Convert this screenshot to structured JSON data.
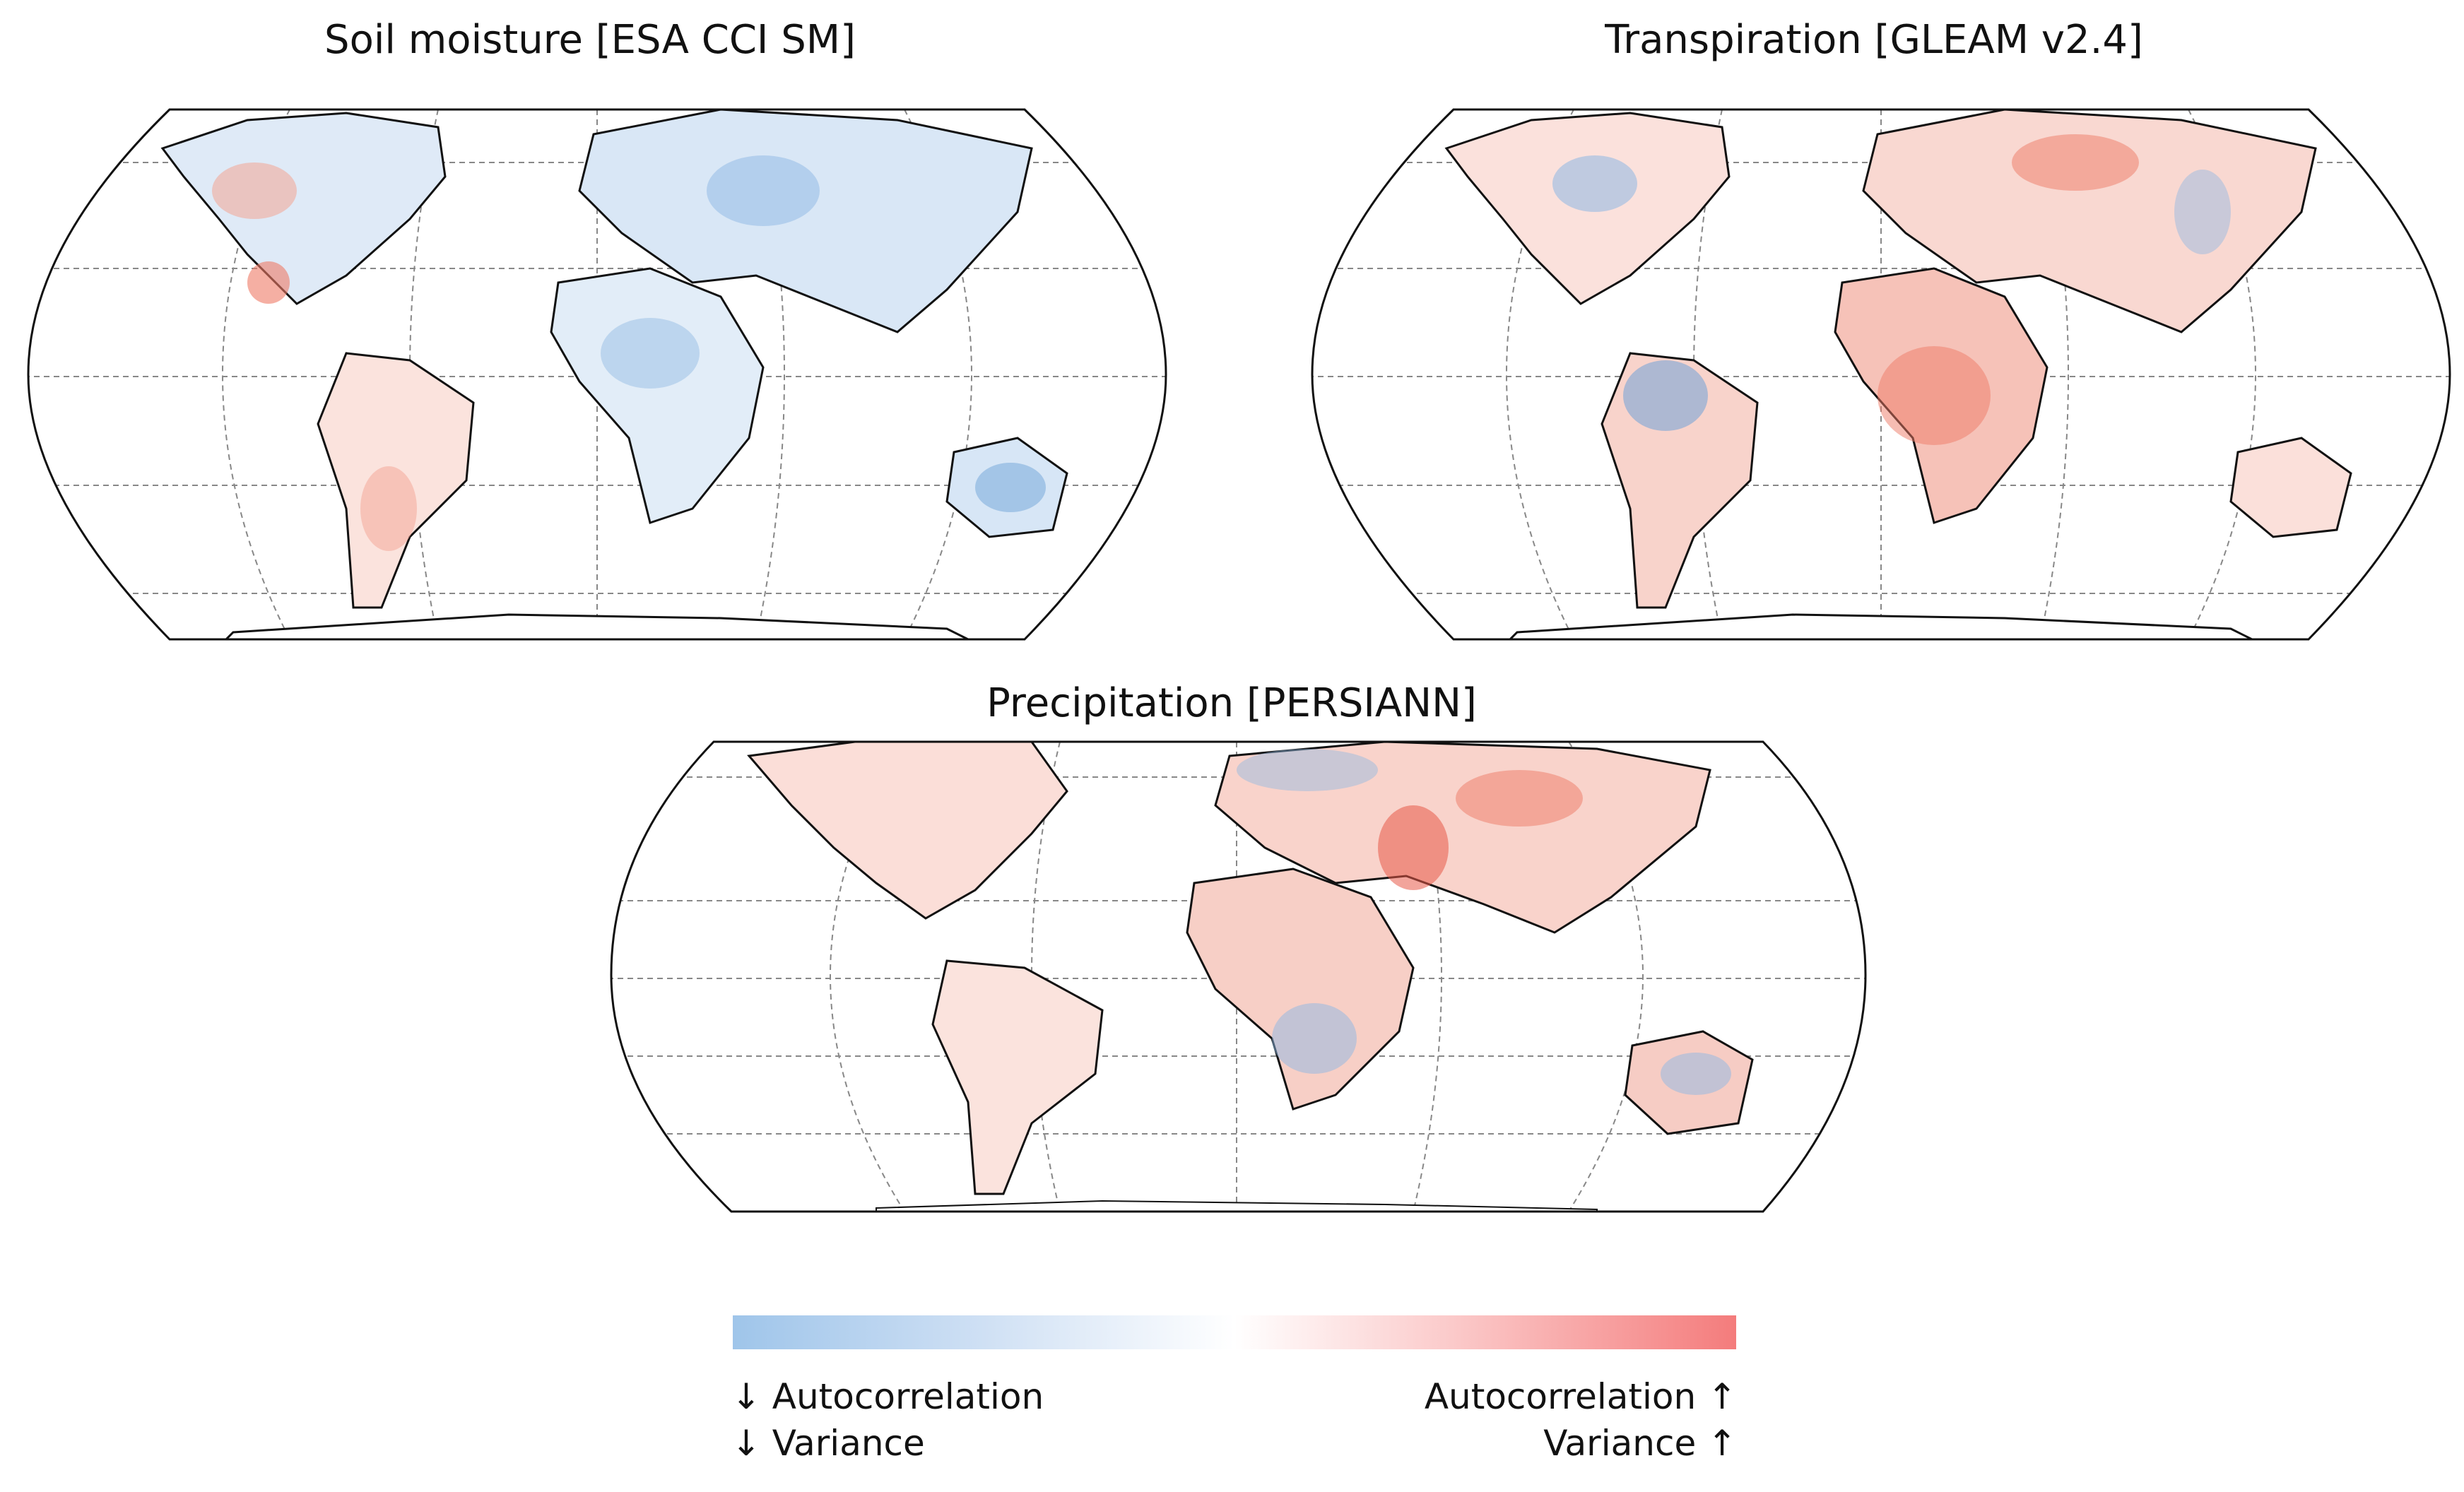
{
  "maps": [
    {
      "id": "soil",
      "title": "Soil moisture [ESA CCI SM]"
    },
    {
      "id": "transp",
      "title": "Transpiration [GLEAM v2.4]"
    },
    {
      "id": "precip",
      "title": "Precipitation [PERSIANN]"
    }
  ],
  "legend": {
    "low_autocorrelation": "↓ Autocorrelation",
    "low_variance": "↓ Variance",
    "high_autocorrelation": "Autocorrelation ↑",
    "high_variance": "Variance ↑",
    "colors": {
      "low": "#9fc5ea",
      "mid": "#ffffff",
      "high": "#f47c7c"
    }
  }
}
